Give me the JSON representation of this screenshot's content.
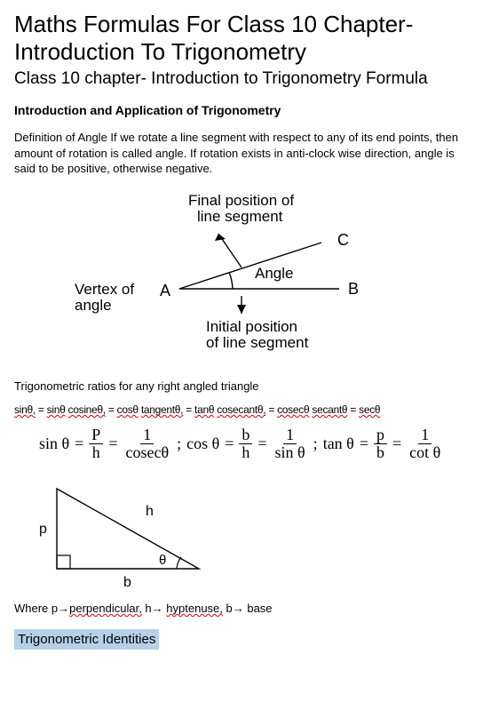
{
  "title": "Maths Formulas For Class 10 Chapter- Introduction To Trigonometry",
  "subtitle": "Class 10 chapter- Introduction to Trigonometry Formula",
  "section1_heading": "Introduction and Application of Trigonometry",
  "definition": "Definition of Angle If we rotate a line segment with respect to any of its end points, then amount of rotation is called angle. If rotation exists in anti-clock wise direction, angle is said to be positive, otherwise negative.",
  "diagram1": {
    "final_pos_l1": "Final position of",
    "final_pos_l2": "line segment",
    "vertex_l1": "Vertex of",
    "vertex_l2": "angle",
    "A": "A",
    "B": "B",
    "C": "C",
    "angle": "Angle",
    "initial_l1": "Initial position",
    "initial_l2": "of line segment",
    "fontsize": 17,
    "stroke": "#000000",
    "stroke_width": 1.4
  },
  "ratios_line": "Trigonometric ratios for any right angled triangle",
  "short_names": {
    "text_parts": [
      "sinθ,",
      "=",
      "sinθ",
      "cosineθ,",
      "=",
      "cosθ",
      "tangentθ,",
      "=",
      "tanθ",
      "cosecantθ,",
      "=",
      "cosecθ",
      "secantθ",
      "=",
      "secθ"
    ],
    "wavy_indices": [
      0,
      2,
      3,
      5,
      6,
      8,
      9,
      11,
      12,
      14
    ],
    "separators": [
      "",
      " ",
      " ",
      " ",
      " ",
      " ",
      " ",
      " ",
      " ",
      " ",
      " ",
      " ",
      " ",
      " ",
      ""
    ]
  },
  "formulas": {
    "sin": {
      "lhs": "sin θ",
      "n1": "P",
      "d1": "h",
      "n2": "1",
      "d2": "cosecθ"
    },
    "cos": {
      "lhs": "cos θ",
      "n1": "b",
      "d1": "h",
      "n2": "1",
      "d2": "sin θ"
    },
    "tan": {
      "lhs": "tan θ",
      "n1": "p",
      "d1": "b",
      "n2": "1",
      "d2": "cot θ"
    }
  },
  "triangle": {
    "p": "p",
    "h": "h",
    "b": "b",
    "theta": "θ",
    "stroke": "#000000",
    "stroke_width": 1.4
  },
  "where": {
    "prefix": "Where ",
    "p_arrow": "p→",
    "p_word": "perpendicular,",
    "h": " h→ ",
    "h_word": "hyptenuse,",
    "b": " b→ base"
  },
  "identities_heading": "Trigonometric Identities"
}
